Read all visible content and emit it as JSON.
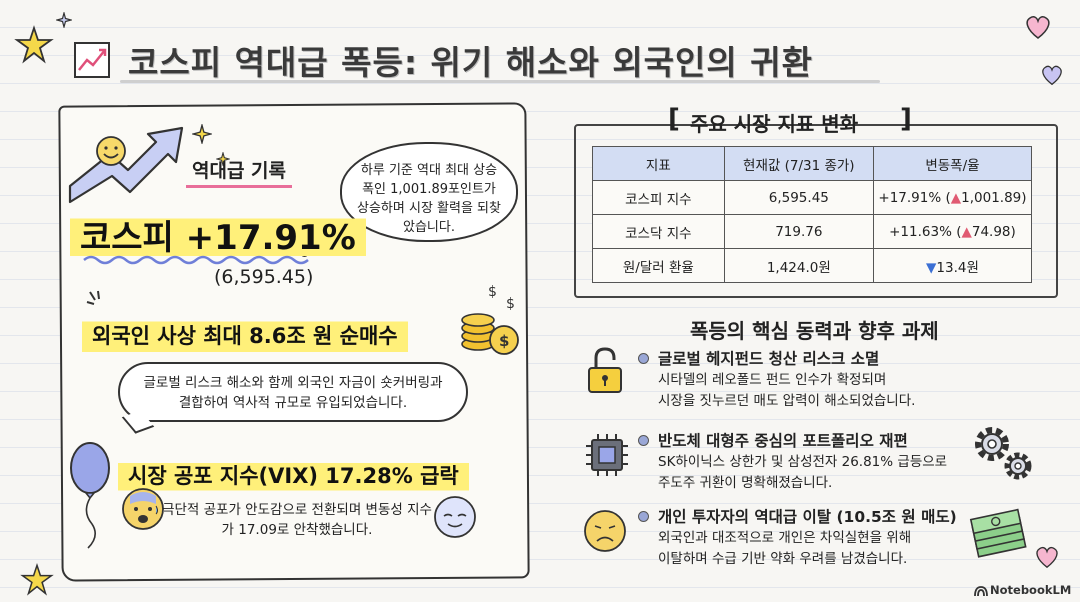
{
  "title": "코스피 역대급 폭등: 위기 해소와 외국인의 귀환",
  "left": {
    "record_label": "역대급 기록",
    "kospi_headline": "코스피 +17.91%",
    "kospi_value": "(6,595.45)",
    "thought_text": "하루 기준 역대 최대 상승폭인 1,001.89포인트가 상승하며 시장 활력을 되찾았습니다.",
    "foreign_headline": "외국인 사상 최대 8.6조 원 순매수",
    "foreign_text": "글로벌 리스크 해소와 함께 외국인 자금이 숏커버링과 결합하여 역사적 규모로 유입되었습니다.",
    "vix_headline": "시장 공포 지수(VIX) 17.28% 급락",
    "vix_text": "극단적 공포가 안도감으로 전환되며 변동성 지수가 17.09로 안착했습니다."
  },
  "table": {
    "title": "주요 시장 지표 변화",
    "headers": [
      "지표",
      "현재값 (7/31 종가)",
      "변동폭/율"
    ],
    "rows": [
      {
        "name": "코스피 지수",
        "value": "6,595.45",
        "change": "+17.91% (",
        "arrow": "▲",
        "delta": "1,001.89)"
      },
      {
        "name": "코스닥 지수",
        "value": "719.76",
        "change": "+11.63% (",
        "arrow": "▲",
        "delta": "74.98)"
      },
      {
        "name": "원/달러 환율",
        "value": "1,424.0원",
        "change": "",
        "arrow": "▼",
        "delta": "13.4원"
      }
    ]
  },
  "drivers": {
    "title": "폭등의 핵심 동력과 향후 과제",
    "items": [
      {
        "head": "글로벌 헤지펀드 청산 리스크 소멸",
        "line1": "시타델의 레오폴드 펀드 인수가 확정되며",
        "line2": "시장을 짓누르던 매도 압력이 해소되었습니다."
      },
      {
        "head": "반도체 대형주 중심의 포트폴리오 재편",
        "line1": "SK하이닉스 상한가 및 삼성전자 26.81% 급등으로",
        "line2": "주도주 귀환이 명확해졌습니다."
      },
      {
        "head": "개인 투자자의 역대급 이탈 (10.5조 원 매도)",
        "line1": "외국인과 대조적으로 개인은 차익실현을 위해",
        "line2": "이탈하며 수급 기반 약화 우려를 남겼습니다."
      }
    ]
  },
  "brand": "NotebookLM",
  "colors": {
    "highlight": "#fff07a",
    "up": "#e05a72",
    "down": "#3b6fd4",
    "table_header": "#d3ddf3",
    "accent_pink": "#e86e9a"
  }
}
